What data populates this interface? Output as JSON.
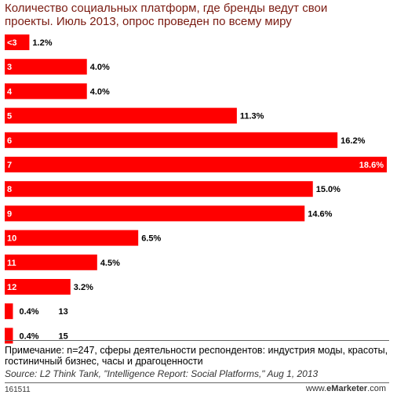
{
  "header": {
    "title": "Количество социальных платформ, где бренды ведут свои проекты. Июль 2013, опрос проведен  по всему миру"
  },
  "colors": {
    "bar": "#ff0000",
    "title": "#7a1a10"
  },
  "chart_data": {
    "type": "bar",
    "orientation": "horizontal",
    "categories": [
      "<3",
      "3",
      "4",
      "5",
      "6",
      "7",
      "8",
      "9",
      "10",
      "11",
      "12",
      "13",
      "15"
    ],
    "values": [
      1.2,
      4.0,
      4.0,
      11.3,
      16.2,
      18.6,
      15.0,
      14.6,
      6.5,
      4.5,
      3.2,
      0.4,
      0.4
    ],
    "value_labels": [
      "1.2%",
      "4.0%",
      "4.0%",
      "11.3%",
      "16.2%",
      "18.6%",
      "15.0%",
      "14.6%",
      "6.5%",
      "4.5%",
      "3.2%",
      "0.4%",
      "0.4%"
    ],
    "unit": "%",
    "xlim": [
      0,
      18.6
    ],
    "grid": false,
    "legend": "none"
  },
  "footer": {
    "note": "Примечание: n=247, сферы деятельности респондентов: индустрия моды, красоты, гостиничный бизнес, часы и драгоценности",
    "source": "Source: L2 Think Tank, \"Intelligence Report: Social Platforms,\" Aug 1, 2013",
    "chart_id": "161511",
    "brand_prefix": "www.",
    "brand_name": "eMarketer",
    "brand_suffix": ".com"
  }
}
